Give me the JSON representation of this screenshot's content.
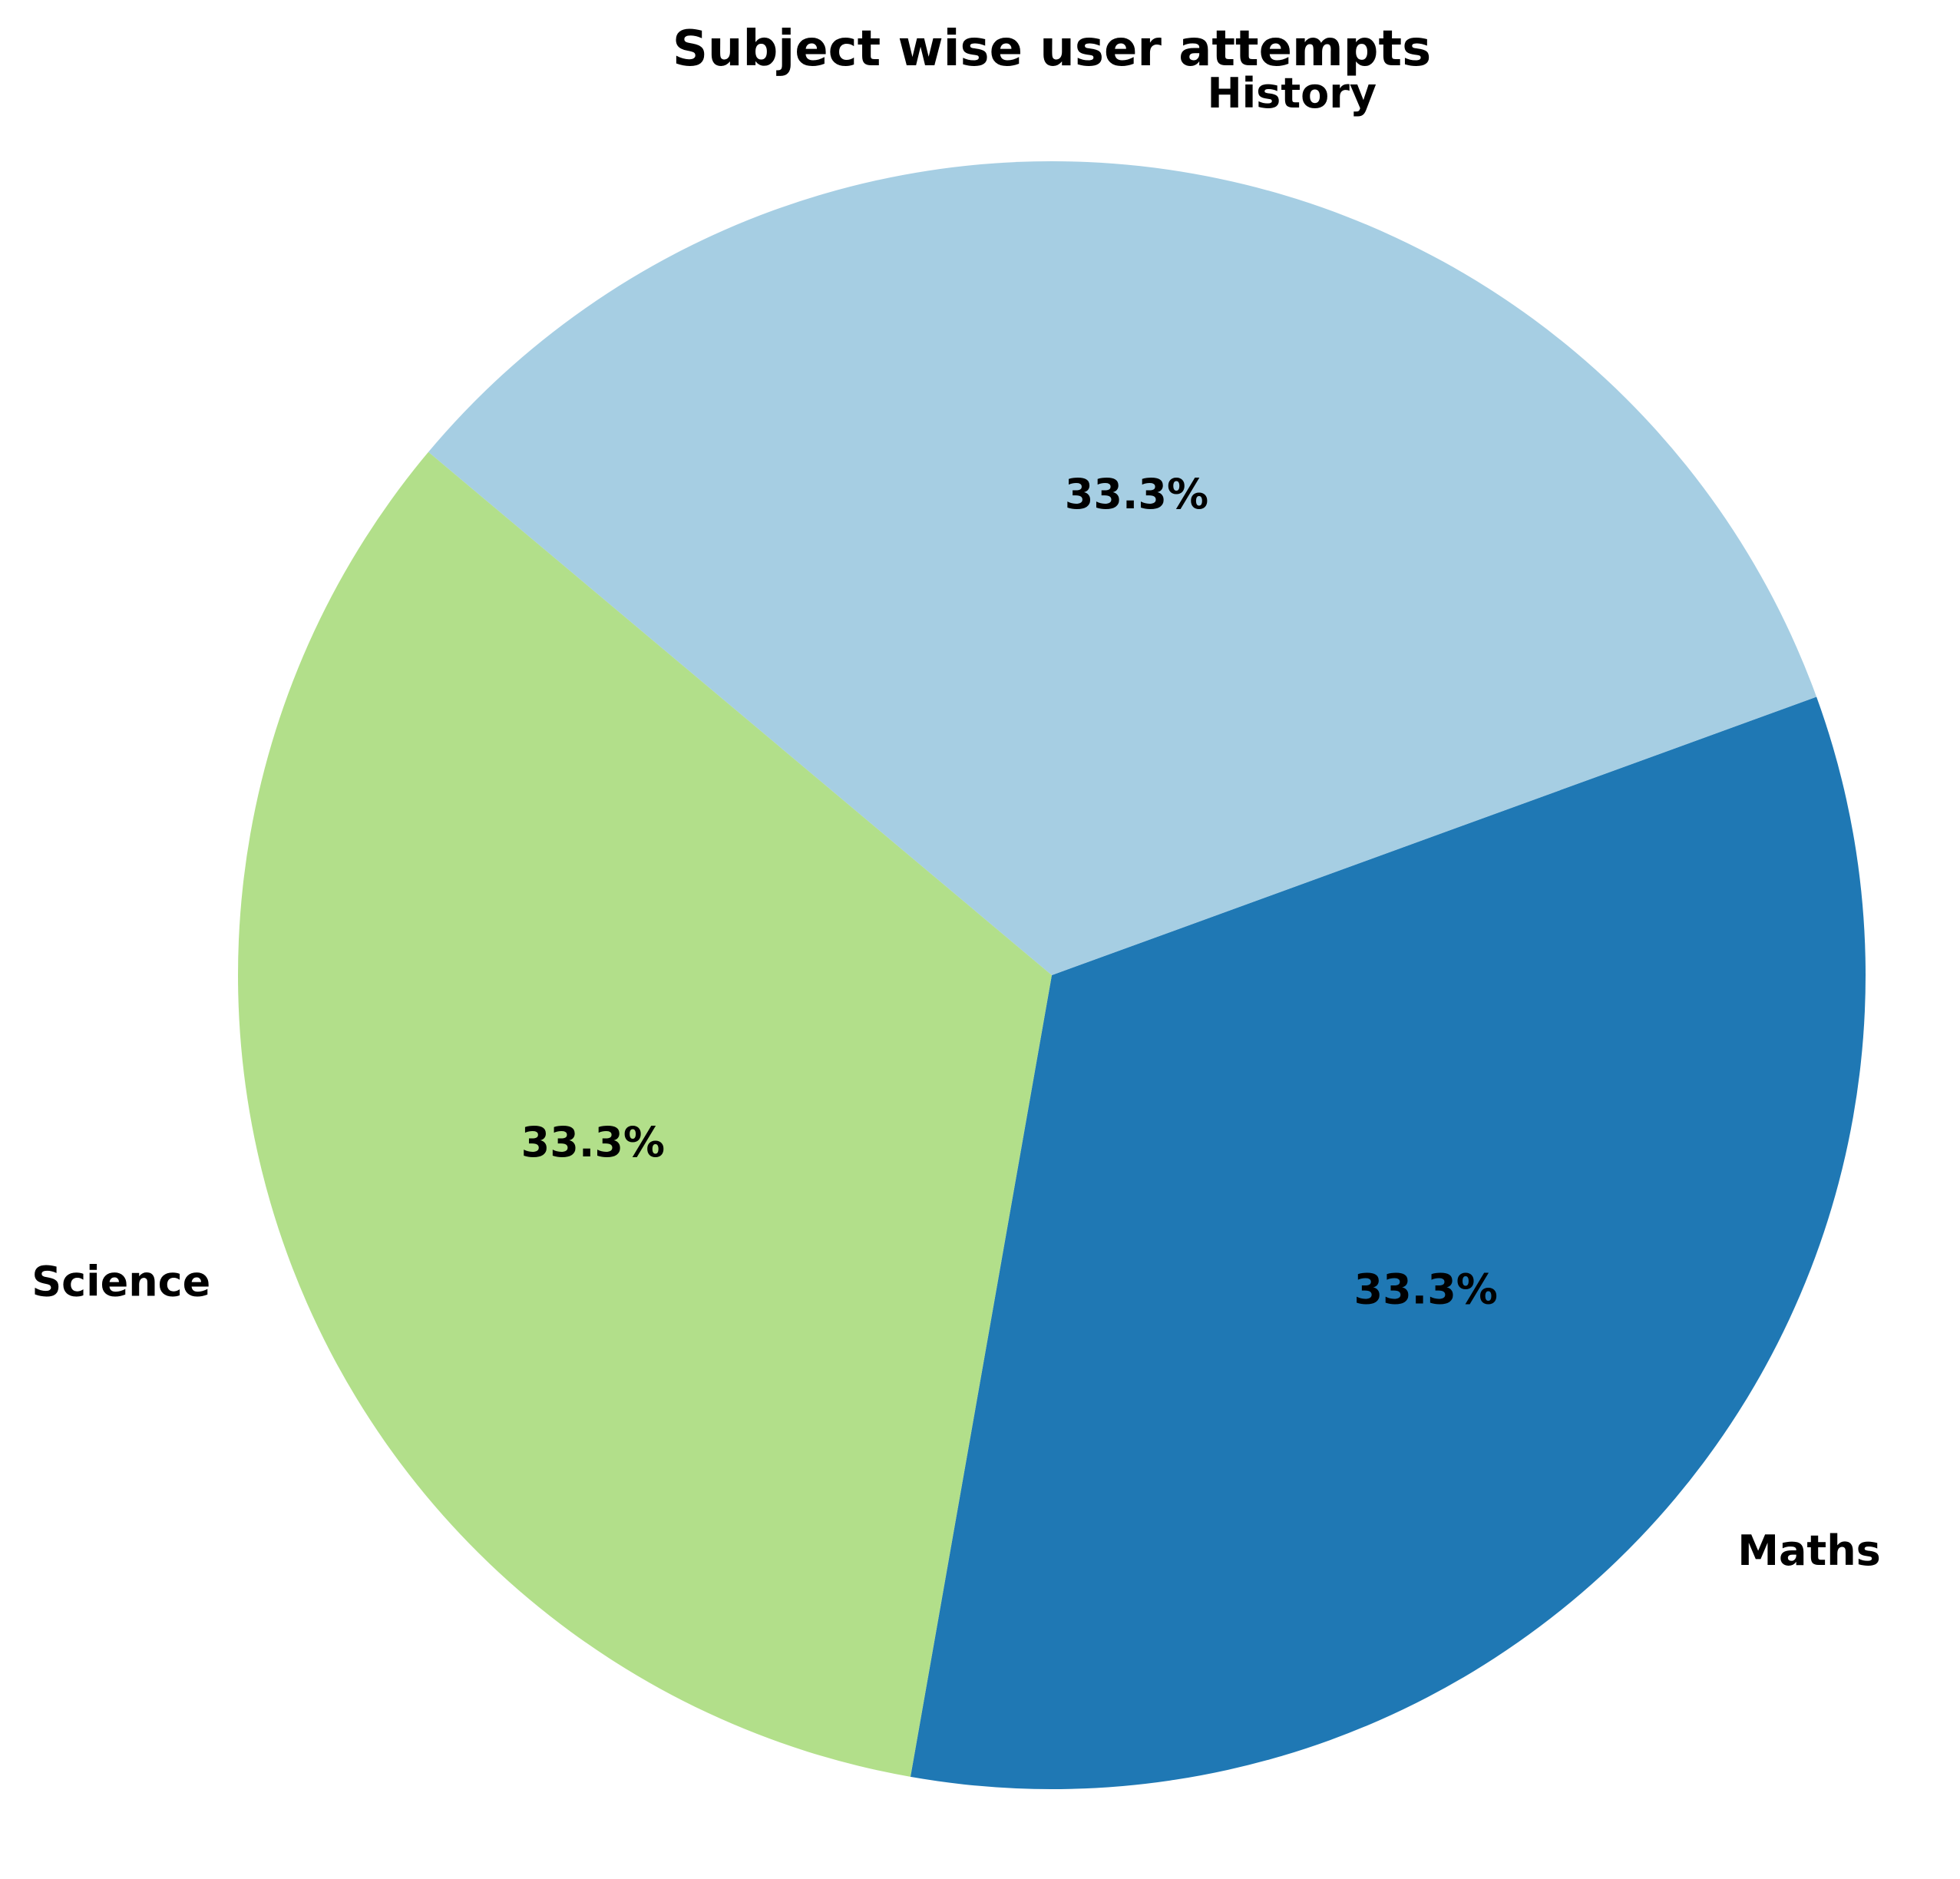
{
  "chart_data": {
    "type": "pie",
    "title": "Subject wise user attempts",
    "labels": [
      "Maths",
      "History",
      "Science"
    ],
    "values": [
      33.3,
      33.3,
      33.3
    ],
    "percent_labels": [
      "33.3%",
      "33.3%",
      "33.3%"
    ],
    "colors": [
      "#1f78b4",
      "#a6cee3",
      "#b2df8a"
    ]
  }
}
